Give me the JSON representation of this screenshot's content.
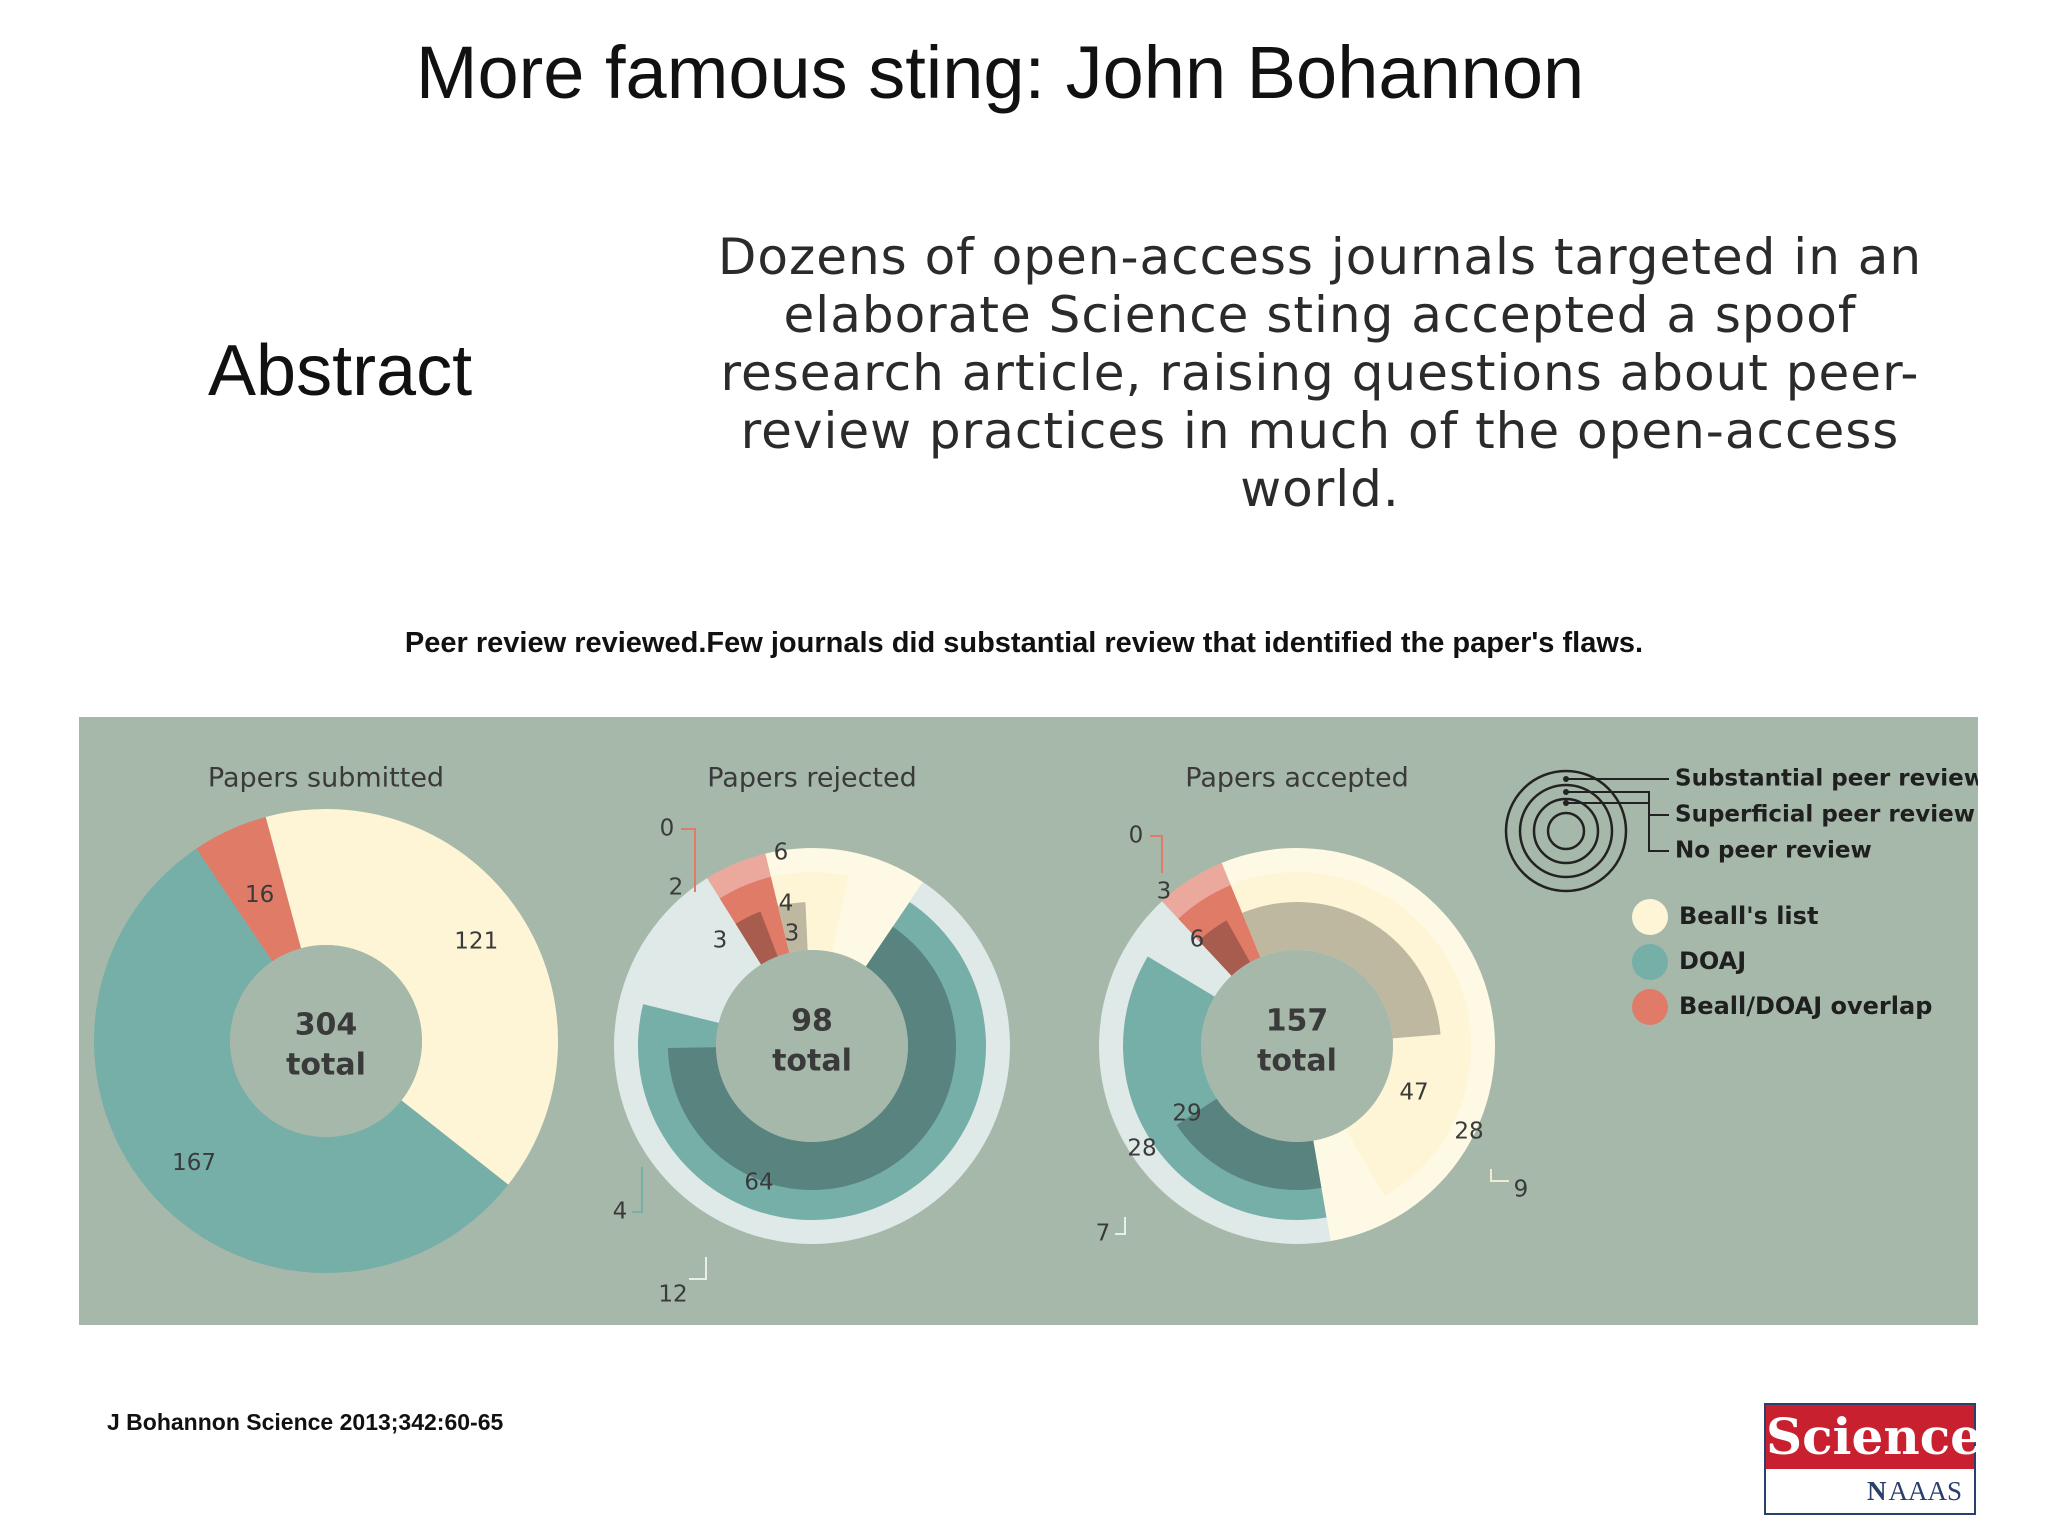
{
  "slide": {
    "title": "More famous sting: John Bohannon",
    "abstract_label": "Abstract",
    "abstract_text": "Dozens of open-access journals targeted in an elaborate Science sting accepted a spoof research article, raising questions about peer-review practices in much of the open-access world.",
    "caption": "Peer review reviewed.Few journals did substantial review that identified the paper's flaws.",
    "citation": "J Bohannon Science 2013;342:60-65",
    "logo": {
      "word": "Science",
      "mark": "N",
      "org": "AAAS"
    }
  },
  "colors": {
    "background": "#a6b8aa",
    "bealls_list": "#fdf5d6",
    "doaj": "#76aea8",
    "overlap": "#e07b68",
    "text": "#3a3a3a"
  },
  "chart_data": [
    {
      "type": "pie",
      "title": "Papers submitted",
      "total": "304",
      "total_label": "total",
      "rings": [
        {
          "level": "outer",
          "segments": [
            {
              "name": "Beall's list",
              "value": 121
            },
            {
              "name": "DOAJ",
              "value": 167
            },
            {
              "name": "Beall/DOAJ overlap",
              "value": 16
            }
          ]
        }
      ]
    },
    {
      "type": "pie",
      "title": "Papers rejected",
      "total": "98",
      "total_label": "total",
      "rings": [
        {
          "level": "Substantial peer review",
          "segments": [
            {
              "name": "Beall's list",
              "value": 6
            },
            {
              "name": "DOAJ",
              "value": 12
            },
            {
              "name": "Beall/DOAJ overlap",
              "value": 0
            }
          ]
        },
        {
          "level": "Superficial peer review",
          "segments": [
            {
              "name": "Beall's list",
              "value": 4
            },
            {
              "name": "DOAJ",
              "value": 4
            },
            {
              "name": "Beall/DOAJ overlap",
              "value": 2
            }
          ]
        },
        {
          "level": "No peer review",
          "segments": [
            {
              "name": "Beall's list",
              "value": 3
            },
            {
              "name": "DOAJ",
              "value": 64
            },
            {
              "name": "Beall/DOAJ overlap",
              "value": 3
            }
          ]
        }
      ]
    },
    {
      "type": "pie",
      "title": "Papers accepted",
      "total": "157",
      "total_label": "total",
      "rings": [
        {
          "level": "Substantial peer review",
          "segments": [
            {
              "name": "Beall's list",
              "value": 9
            },
            {
              "name": "DOAJ",
              "value": 7
            },
            {
              "name": "Beall/DOAJ overlap",
              "value": 0
            }
          ]
        },
        {
          "level": "Superficial peer review",
          "segments": [
            {
              "name": "Beall's list",
              "value": 28
            },
            {
              "name": "DOAJ",
              "value": 28
            },
            {
              "name": "Beall/DOAJ overlap",
              "value": 3
            }
          ]
        },
        {
          "level": "No peer review",
          "segments": [
            {
              "name": "Beall's list",
              "value": 47
            },
            {
              "name": "DOAJ",
              "value": 29
            },
            {
              "name": "Beall/DOAJ overlap",
              "value": 6
            }
          ]
        }
      ]
    }
  ],
  "legend": {
    "review_levels": [
      "Substantial peer review",
      "Superficial peer review",
      "No peer review"
    ],
    "categories": [
      {
        "label": "Beall's list",
        "color": "#fdf5d6"
      },
      {
        "label": "DOAJ",
        "color": "#76aea8"
      },
      {
        "label": "Beall/DOAJ overlap",
        "color": "#e07b68"
      }
    ]
  }
}
